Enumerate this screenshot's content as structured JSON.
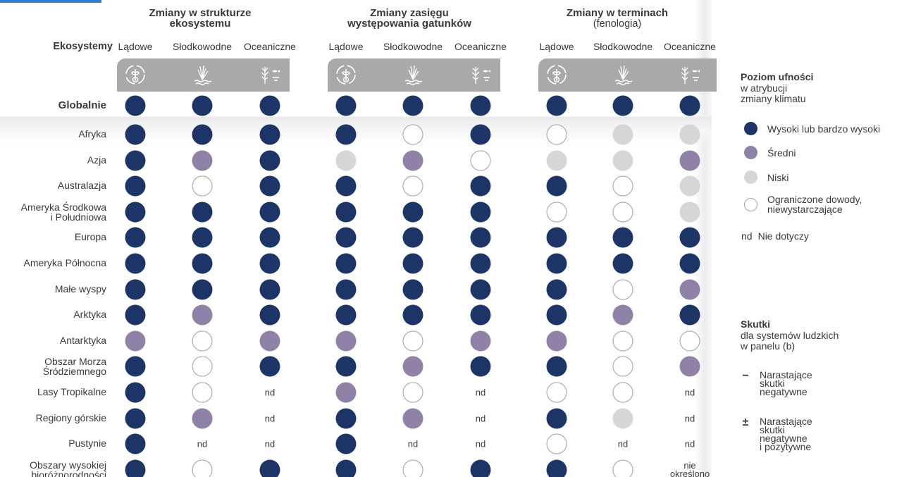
{
  "header": {
    "corner_label": "Ekosystemy",
    "groups": [
      {
        "title": "Zmiany w strukturze",
        "title2": "ekosystemu",
        "subtitle": ""
      },
      {
        "title": "Zmiany zasięgu",
        "title2": "występowania gatunków",
        "subtitle": ""
      },
      {
        "title": "Zmiany w terminach",
        "title2": "",
        "subtitle": "(fenologia)"
      }
    ],
    "columns": [
      "Lądowe",
      "Słodkowodne",
      "Oceaniczne"
    ]
  },
  "icons": [
    "terrestrial-icon",
    "freshwater-icon",
    "ocean-icon"
  ],
  "global_row": {
    "label": "Globalnie",
    "values": [
      "high",
      "high",
      "high",
      "high",
      "high",
      "high",
      "high",
      "high",
      "high"
    ]
  },
  "rows": [
    {
      "label": "Afryka",
      "values": [
        "high",
        "high",
        "high",
        "high",
        "limited",
        "high",
        "limited",
        "low",
        "low"
      ]
    },
    {
      "label": "Azja",
      "values": [
        "high",
        "medium",
        "high",
        "low",
        "medium",
        "limited",
        "low",
        "low",
        "medium"
      ]
    },
    {
      "label": "Australazja",
      "values": [
        "high",
        "limited",
        "high",
        "high",
        "limited",
        "high",
        "high",
        "limited",
        "low"
      ]
    },
    {
      "label": "Ameryka Środkowa\ni Południowa",
      "values": [
        "high",
        "high",
        "high",
        "high",
        "high",
        "high",
        "limited",
        "limited",
        "low"
      ]
    },
    {
      "label": "Europa",
      "values": [
        "high",
        "high",
        "high",
        "high",
        "high",
        "high",
        "high",
        "high",
        "high"
      ]
    },
    {
      "label": "Ameryka Północna",
      "values": [
        "high",
        "high",
        "high",
        "high",
        "high",
        "high",
        "high",
        "high",
        "high"
      ]
    },
    {
      "label": "Małe wyspy",
      "values": [
        "high",
        "high",
        "high",
        "high",
        "high",
        "high",
        "high",
        "limited",
        "medium"
      ]
    },
    {
      "label": "Arktyka",
      "values": [
        "high",
        "medium",
        "high",
        "high",
        "high",
        "high",
        "high",
        "medium",
        "high"
      ]
    },
    {
      "label": "Antarktyka",
      "values": [
        "medium",
        "limited",
        "medium",
        "medium",
        "limited",
        "medium",
        "medium",
        "limited",
        "limited"
      ]
    },
    {
      "label": "Obszar Morza\nŚródziemnego",
      "values": [
        "high",
        "limited",
        "high",
        "high",
        "medium",
        "high",
        "high",
        "limited",
        "medium"
      ]
    },
    {
      "label": "Lasy Tropikalne",
      "values": [
        "high",
        "limited",
        "nd",
        "medium",
        "limited",
        "nd",
        "limited",
        "limited",
        "nd"
      ]
    },
    {
      "label": "Regiony górskie",
      "values": [
        "high",
        "medium",
        "nd",
        "high",
        "medium",
        "nd",
        "high",
        "low",
        "nd"
      ]
    },
    {
      "label": "Pustynie",
      "values": [
        "high",
        "nd",
        "nd",
        "high",
        "nd",
        "nd",
        "limited",
        "nd",
        "nd"
      ]
    },
    {
      "label": "Obszary wysokiej\nbioróżnorodności",
      "values": [
        "high",
        "limited",
        "high",
        "high",
        "limited",
        "high",
        "high",
        "limited",
        "nie\nokreślono"
      ]
    }
  ],
  "legend": {
    "confidence_title": "Poziom ufności",
    "confidence_sub": "w atrybucji\nzmiany klimatu",
    "items": [
      {
        "level": "high",
        "label": "Wysoki lub bardzo wysoki"
      },
      {
        "level": "medium",
        "label": "Średni"
      },
      {
        "level": "low",
        "label": "Niski"
      },
      {
        "level": "limited",
        "label": "Ograniczone dowody,\nniewystarczające"
      }
    ],
    "nd_symbol": "nd",
    "nd_label": "Nie dotyczy",
    "impacts_title": "Skutki",
    "impacts_sub": "dla systemów ludzkich\nw panelu (b)",
    "impact_items": [
      {
        "symbol": "−",
        "label": "Narastające\nskutki\nnegatywne"
      },
      {
        "symbol": "±",
        "label": "Narastające\nskutki\nnegatywne\ni pozytywne"
      }
    ]
  },
  "colors": {
    "high": "#1c3566",
    "medium": "#8f82a6",
    "low": "#d6d6d8",
    "limited": "#ffffff",
    "tab": "#a9a9ab",
    "accent_line": "#2e7fd1"
  }
}
